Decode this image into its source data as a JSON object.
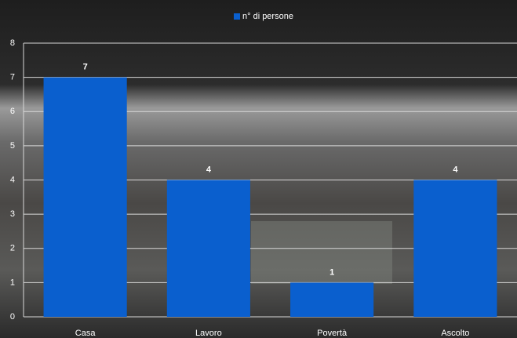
{
  "chart_data": {
    "type": "bar",
    "categories": [
      "Casa",
      "Lavoro",
      "Povertà",
      "Ascolto"
    ],
    "series": [
      {
        "name": "n° di persone",
        "color": "#0a5fce",
        "values": [
          7,
          4,
          1,
          4
        ]
      }
    ],
    "ylim": [
      0,
      8
    ],
    "yticks": [
      0,
      1,
      2,
      3,
      4,
      5,
      6,
      7,
      8
    ],
    "grid": true,
    "legend": "top",
    "data_labels": true
  }
}
